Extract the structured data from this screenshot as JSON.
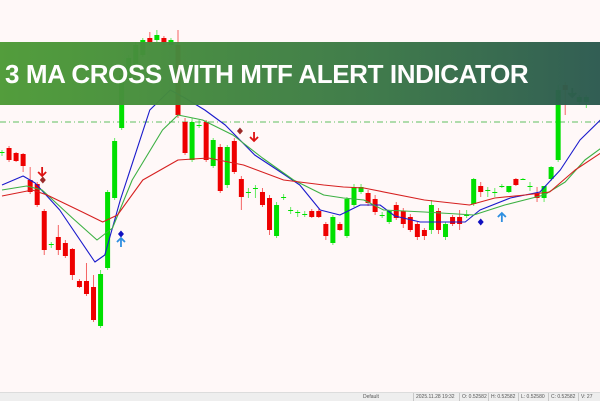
{
  "banner": {
    "title": "3 MA CROSS WITH MTF ALERT INDICATOR"
  },
  "status_bar": {
    "profile": "Default",
    "datetime": "2025.11.28 19:32",
    "open": "O: 0.52582",
    "high": "H: 0.52582",
    "low": "L: 0.52580",
    "close": "C: 0.52582",
    "volume": "V: 27"
  },
  "colors": {
    "bull": "#00e000",
    "bear": "#ee0000",
    "ma_fast": "#1a1acc",
    "ma_mid": "#3cb043",
    "ma_slow": "#d62020",
    "level_line": "#5fbf5f",
    "background": "#fff8f8"
  },
  "chart_data": {
    "type": "candlestick",
    "title": "",
    "ylim": [
      0,
      400
    ],
    "grid": false,
    "candles_ohlc": [
      [
        247,
        250,
        244,
        248
      ],
      [
        252,
        254,
        238,
        240
      ],
      [
        247,
        248,
        238,
        239
      ],
      [
        246,
        247,
        228,
        234
      ],
      [
        220,
        233,
        206,
        208
      ],
      [
        216,
        218,
        193,
        195
      ],
      [
        189,
        191,
        145,
        150
      ],
      [
        155,
        158,
        152,
        156
      ],
      [
        163,
        175,
        145,
        150
      ],
      [
        157,
        160,
        142,
        144
      ],
      [
        151,
        152,
        120,
        125
      ],
      [
        119,
        121,
        112,
        113
      ],
      [
        119,
        137,
        104,
        106
      ],
      [
        113,
        125,
        78,
        80
      ],
      [
        74,
        130,
        72,
        126
      ],
      [
        132,
        210,
        130,
        208
      ],
      [
        202,
        262,
        200,
        259
      ],
      [
        272,
        330,
        270,
        325
      ],
      [
        320,
        345,
        318,
        342
      ],
      [
        335,
        358,
        333,
        355
      ],
      [
        345,
        362,
        343,
        360
      ],
      [
        362,
        368,
        355,
        358
      ],
      [
        360,
        370,
        358,
        365
      ],
      [
        362,
        364,
        355,
        358
      ],
      [
        355,
        362,
        352,
        360
      ],
      [
        355,
        370,
        282,
        285
      ],
      [
        278,
        282,
        245,
        247
      ],
      [
        240,
        282,
        238,
        278
      ],
      [
        274,
        280,
        272,
        275
      ],
      [
        278,
        280,
        238,
        240
      ],
      [
        234,
        262,
        232,
        260
      ],
      [
        253,
        256,
        207,
        209
      ],
      [
        215,
        255,
        212,
        253
      ],
      [
        259,
        262,
        226,
        228
      ],
      [
        221,
        224,
        190,
        203
      ],
      [
        207,
        212,
        202,
        208
      ],
      [
        211,
        215,
        202,
        212
      ],
      [
        208,
        212,
        193,
        195
      ],
      [
        202,
        205,
        165,
        170
      ],
      [
        164,
        198,
        162,
        195
      ],
      [
        203,
        206,
        200,
        203
      ],
      [
        190,
        193,
        186,
        190
      ],
      [
        188,
        190,
        183,
        188
      ],
      [
        186,
        189,
        183,
        186
      ],
      [
        189,
        191,
        182,
        183
      ],
      [
        189,
        191,
        182,
        183
      ],
      [
        176,
        178,
        160,
        164
      ],
      [
        157,
        185,
        155,
        183
      ],
      [
        176,
        178,
        169,
        170
      ],
      [
        164,
        203,
        162,
        201
      ],
      [
        195,
        216,
        193,
        213
      ],
      [
        208,
        216,
        206,
        213
      ],
      [
        207,
        210,
        194,
        197
      ],
      [
        201,
        205,
        185,
        188
      ],
      [
        185,
        188,
        182,
        185
      ],
      [
        178,
        190,
        176,
        189
      ],
      [
        195,
        198,
        180,
        182
      ],
      [
        189,
        192,
        172,
        176
      ],
      [
        183,
        186,
        168,
        170
      ],
      [
        176,
        178,
        160,
        163
      ],
      [
        170,
        172,
        160,
        164
      ],
      [
        170,
        200,
        166,
        195
      ],
      [
        189,
        192,
        166,
        170
      ],
      [
        163,
        178,
        160,
        176
      ],
      [
        183,
        185,
        174,
        176
      ],
      [
        183,
        190,
        170,
        176
      ],
      [
        185,
        190,
        182,
        185
      ],
      [
        196,
        222,
        194,
        221
      ],
      [
        214,
        218,
        203,
        208
      ],
      [
        210,
        213,
        203,
        210
      ],
      [
        208,
        212,
        203,
        208
      ],
      [
        214,
        216,
        212,
        214
      ],
      [
        208,
        214,
        207,
        214
      ],
      [
        221,
        222,
        214,
        215
      ],
      [
        221,
        222,
        220,
        221
      ],
      [
        214,
        218,
        209,
        214
      ],
      [
        207,
        213,
        198,
        202
      ],
      [
        202,
        214,
        198,
        214
      ],
      [
        221,
        234,
        219,
        233
      ],
      [
        240,
        315,
        238,
        310
      ],
      [
        315,
        318,
        285,
        310
      ],
      [
        305,
        310,
        303,
        307
      ],
      [
        298,
        305,
        295,
        303
      ],
      [
        298,
        305,
        292,
        303
      ]
    ],
    "moving_averages": [
      {
        "role": "fast",
        "color": "#1a1acc",
        "points": [
          [
            0,
            215
          ],
          [
            3,
            224
          ],
          [
            4.7,
            217
          ],
          [
            8.2,
            190
          ],
          [
            13.2,
            138
          ],
          [
            14.6,
            145
          ],
          [
            16.8,
            200
          ],
          [
            21,
            290
          ],
          [
            23.9,
            310
          ],
          [
            26,
            302
          ],
          [
            28.8,
            290
          ],
          [
            31.7,
            275
          ],
          [
            35.9,
            245
          ],
          [
            40.2,
            225
          ],
          [
            42.3,
            215
          ],
          [
            45.2,
            190
          ],
          [
            48,
            185
          ],
          [
            50.9,
            195
          ],
          [
            53.7,
            195
          ],
          [
            55.8,
            184
          ],
          [
            59.4,
            178
          ],
          [
            65.8,
            178
          ],
          [
            67.9,
            190
          ],
          [
            72.2,
            202
          ],
          [
            76.4,
            208
          ],
          [
            79.3,
            230
          ],
          [
            82.1,
            260
          ],
          [
            85,
            280
          ]
        ]
      },
      {
        "role": "mid",
        "color": "#3cb043",
        "points": [
          [
            0,
            210
          ],
          [
            3.5,
            214
          ],
          [
            5.7,
            210
          ],
          [
            10,
            182
          ],
          [
            13.5,
            160
          ],
          [
            15.7,
            172
          ],
          [
            18.5,
            220
          ],
          [
            22.8,
            270
          ],
          [
            25,
            285
          ],
          [
            28.5,
            280
          ],
          [
            32.8,
            265
          ],
          [
            37,
            242
          ],
          [
            41.4,
            220
          ],
          [
            45.7,
            205
          ],
          [
            48.5,
            202
          ],
          [
            51.4,
            200
          ],
          [
            54.2,
            190
          ],
          [
            60,
            188
          ],
          [
            67,
            185
          ],
          [
            71.4,
            195
          ],
          [
            77,
            205
          ],
          [
            80,
            218
          ],
          [
            82.8,
            240
          ],
          [
            85.7,
            255
          ]
        ]
      },
      {
        "role": "slow",
        "color": "#d62020",
        "points": [
          [
            0,
            204
          ],
          [
            4.3,
            210
          ],
          [
            6.4,
            205
          ],
          [
            11.4,
            188
          ],
          [
            14.3,
            178
          ],
          [
            16.4,
            185
          ],
          [
            20,
            220
          ],
          [
            25,
            240
          ],
          [
            29.3,
            242
          ],
          [
            34.3,
            235
          ],
          [
            40,
            220
          ],
          [
            45.7,
            215
          ],
          [
            48.5,
            213
          ],
          [
            51.4,
            212
          ],
          [
            60,
            200
          ],
          [
            66.4,
            195
          ],
          [
            70,
            202
          ],
          [
            74.3,
            205
          ],
          [
            77.8,
            208
          ],
          [
            81.4,
            230
          ],
          [
            85.7,
            250
          ]
        ]
      }
    ],
    "level_line": {
      "price": 278,
      "style": "dash-dot"
    },
    "signals": [
      {
        "type": "arrow-down",
        "bar": 5.7,
        "price": 228,
        "color": "#dd1111"
      },
      {
        "type": "diamond",
        "bar": 5.8,
        "price": 220,
        "color": "#9b2a2a"
      },
      {
        "type": "diamond",
        "bar": 16.9,
        "price": 166,
        "color": "#1010c0"
      },
      {
        "type": "arrow-up",
        "bar": 16.9,
        "price": 158,
        "color": "#2f8fe0"
      },
      {
        "type": "diamond",
        "bar": 33.8,
        "price": 269,
        "color": "#9b2a2a"
      },
      {
        "type": "arrow-down",
        "bar": 35.8,
        "price": 263,
        "color": "#dd1111"
      },
      {
        "type": "diamond",
        "bar": 68,
        "price": 178,
        "color": "#1010c0"
      },
      {
        "type": "arrow-up",
        "bar": 71,
        "price": 183,
        "color": "#2f8fe0"
      },
      {
        "type": "arrow-down",
        "bar": 81,
        "price": 307,
        "color": "#2e8b2e"
      }
    ]
  }
}
